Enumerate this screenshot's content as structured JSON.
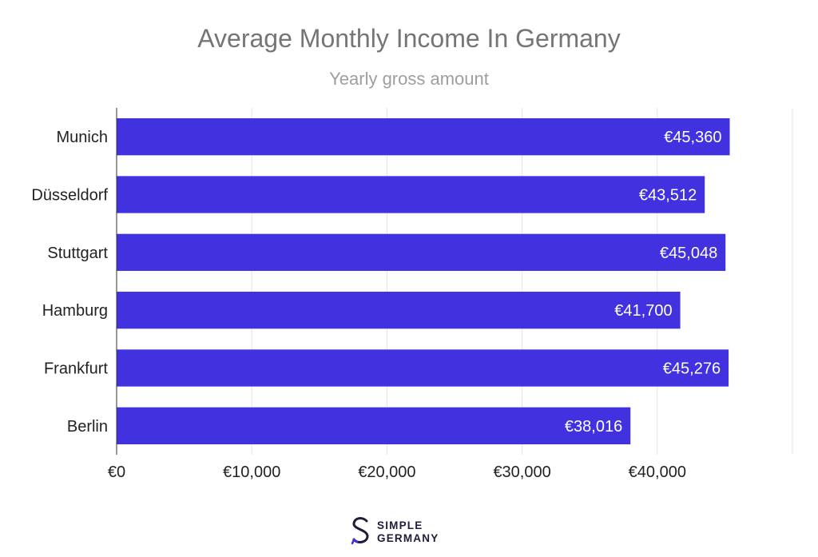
{
  "chart_data": {
    "type": "bar",
    "orientation": "horizontal",
    "title": "Average Monthly Income In Germany",
    "subtitle": "Yearly gross amount",
    "categories": [
      "Munich",
      "Düsseldorf",
      "Stuttgart",
      "Hamburg",
      "Frankfurt",
      "Berlin"
    ],
    "values": [
      45360,
      43512,
      45048,
      41700,
      45276,
      38016
    ],
    "value_labels": [
      "€45,360",
      "€43,512",
      "€45,048",
      "€41,700",
      "€45,276",
      "€38,016"
    ],
    "x_ticks": [
      0,
      10000,
      20000,
      30000,
      40000
    ],
    "x_tick_labels": [
      "€0",
      "€10,000",
      "€20,000",
      "€30,000",
      "€40,000"
    ],
    "xlim": [
      0,
      50000
    ],
    "grid": true,
    "bar_color": "#4131df"
  },
  "brand": {
    "line1": "SIMPLE",
    "line2": "GERMANY",
    "icon": "s-logo-icon",
    "color": "#1d1d3b",
    "accent": "#4131df"
  }
}
